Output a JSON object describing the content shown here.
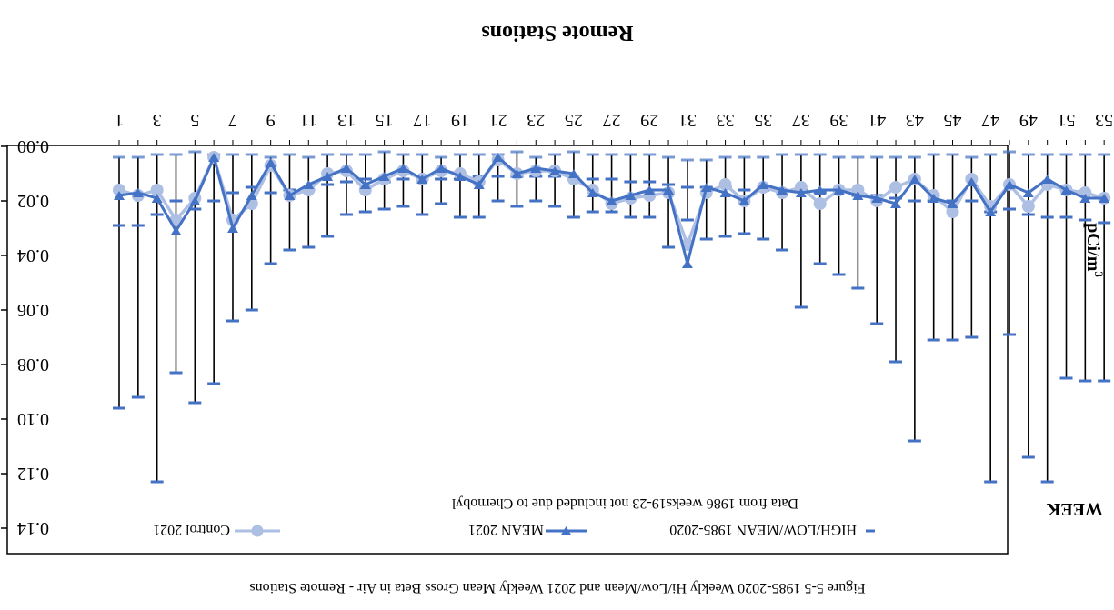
{
  "chart_data": {
    "type": "line",
    "title": "Remote Stations",
    "caption": "Figure 5-5 1985-2020 Weekly Hi/Low/Mean and 2021 Weekly Mean Gross Beta in Air - Remote Stations",
    "ylabel": "pCi/m",
    "ylabel_superscript": "3",
    "xlabel": "WEEK",
    "annotation": "Data from 1986 weeks19-23 not included due to Chernobyl",
    "ylim": [
      0,
      0.14
    ],
    "yticks": [
      "0.00",
      "0.02",
      "0.04",
      "0.06",
      "0.08",
      "0.10",
      "0.12",
      "0.14"
    ],
    "xticks": [
      "1",
      "3",
      "5",
      "7",
      "9",
      "11",
      "13",
      "15",
      "17",
      "19",
      "21",
      "23",
      "25",
      "27",
      "29",
      "31",
      "33",
      "35",
      "37",
      "39",
      "41",
      "43",
      "45",
      "47",
      "49",
      "51",
      "53"
    ],
    "weeks": [
      1,
      2,
      3,
      4,
      5,
      6,
      7,
      8,
      9,
      10,
      11,
      12,
      13,
      14,
      15,
      16,
      17,
      18,
      19,
      20,
      21,
      22,
      23,
      24,
      25,
      26,
      27,
      28,
      29,
      30,
      31,
      32,
      33,
      34,
      35,
      36,
      37,
      38,
      39,
      40,
      41,
      42,
      43,
      44,
      45,
      46,
      47,
      48,
      49,
      50,
      51,
      52,
      53
    ],
    "legend_position": "top",
    "hilow": {
      "name": "HIGH/LOW/MEAN 1985-2020",
      "color": "#4472c4",
      "high": [
        0.096,
        0.092,
        0.123,
        0.083,
        0.094,
        0.087,
        0.064,
        0.06,
        0.043,
        0.038,
        0.037,
        0.033,
        0.025,
        0.024,
        0.023,
        0.022,
        0.025,
        0.021,
        0.026,
        0.026,
        0.02,
        0.022,
        0.02,
        0.022,
        0.026,
        0.024,
        0.024,
        0.026,
        0.026,
        0.037,
        0.027,
        0.034,
        0.033,
        0.032,
        0.034,
        0.038,
        0.059,
        0.043,
        0.047,
        0.052,
        0.065,
        0.079,
        0.108,
        0.071,
        0.071,
        0.07,
        0.123,
        0.069,
        0.114,
        0.123,
        0.085,
        0.086,
        0.086
      ],
      "mean": [
        0.029,
        0.029,
        0.025,
        0.02,
        0.023,
        0.02,
        0.017,
        0.015,
        0.017,
        0.016,
        0.016,
        0.014,
        0.013,
        0.012,
        0.013,
        0.012,
        0.012,
        0.012,
        0.012,
        0.011,
        0.011,
        0.011,
        0.011,
        0.011,
        0.012,
        0.012,
        0.012,
        0.013,
        0.013,
        0.014,
        0.015,
        0.015,
        0.015,
        0.016,
        0.016,
        0.016,
        0.016,
        0.017,
        0.016,
        0.018,
        0.018,
        0.019,
        0.02,
        0.02,
        0.02,
        0.02,
        0.024,
        0.023,
        0.025,
        0.026,
        0.026,
        0.027,
        0.028
      ],
      "low": [
        0.004,
        0.004,
        0.003,
        0.003,
        0.002,
        0.003,
        0.003,
        0.003,
        0.004,
        0.003,
        0.004,
        0.003,
        0.003,
        0.003,
        0.002,
        0.003,
        0.003,
        0.004,
        0.003,
        0.003,
        0.003,
        0.002,
        0.004,
        0.003,
        0.002,
        0.003,
        0.003,
        0.003,
        0.003,
        0.004,
        0.005,
        0.005,
        0.004,
        0.004,
        0.004,
        0.003,
        0.003,
        0.003,
        0.004,
        0.004,
        0.004,
        0.004,
        0.004,
        0.003,
        0.003,
        0.004,
        0.003,
        0.002,
        0.003,
        0.003,
        0.003,
        0.003,
        0.003
      ]
    },
    "series": [
      {
        "name": "MEAN 2021",
        "color": "#4472c4",
        "marker": "triangle-down",
        "values": [
          0.018,
          0.017,
          0.019,
          0.031,
          0.02,
          0.004,
          0.03,
          0.018,
          0.006,
          0.018,
          0.014,
          0.011,
          0.008,
          0.014,
          0.011,
          0.008,
          0.012,
          0.008,
          0.011,
          0.014,
          0.004,
          0.01,
          0.008,
          0.009,
          0.01,
          0.017,
          0.02,
          0.018,
          0.016,
          0.016,
          0.043,
          0.015,
          0.017,
          0.02,
          0.014,
          0.016,
          0.017,
          0.016,
          0.016,
          0.018,
          0.019,
          0.021,
          0.012,
          0.019,
          0.021,
          0.013,
          0.024,
          0.014,
          0.017,
          0.012,
          0.016,
          0.019,
          0.019
        ]
      },
      {
        "name": "Control 2021",
        "color": "#aebfe4",
        "marker": "circle",
        "values": [
          0.016,
          0.018,
          0.016,
          0.027,
          0.019,
          0.004,
          0.027,
          0.021,
          0.007,
          0.018,
          0.016,
          0.01,
          0.009,
          0.016,
          0.012,
          0.009,
          0.012,
          0.009,
          0.01,
          0.013,
          0.005,
          0.01,
          0.009,
          0.009,
          0.012,
          0.016,
          0.021,
          0.019,
          0.018,
          0.017,
          0.036,
          0.017,
          0.014,
          0.02,
          0.015,
          0.017,
          0.015,
          0.021,
          0.016,
          0.016,
          0.02,
          0.015,
          0.012,
          0.018,
          0.024,
          0.012,
          0.022,
          0.014,
          0.022,
          0.014,
          0.016,
          0.017,
          0.019
        ]
      }
    ]
  }
}
